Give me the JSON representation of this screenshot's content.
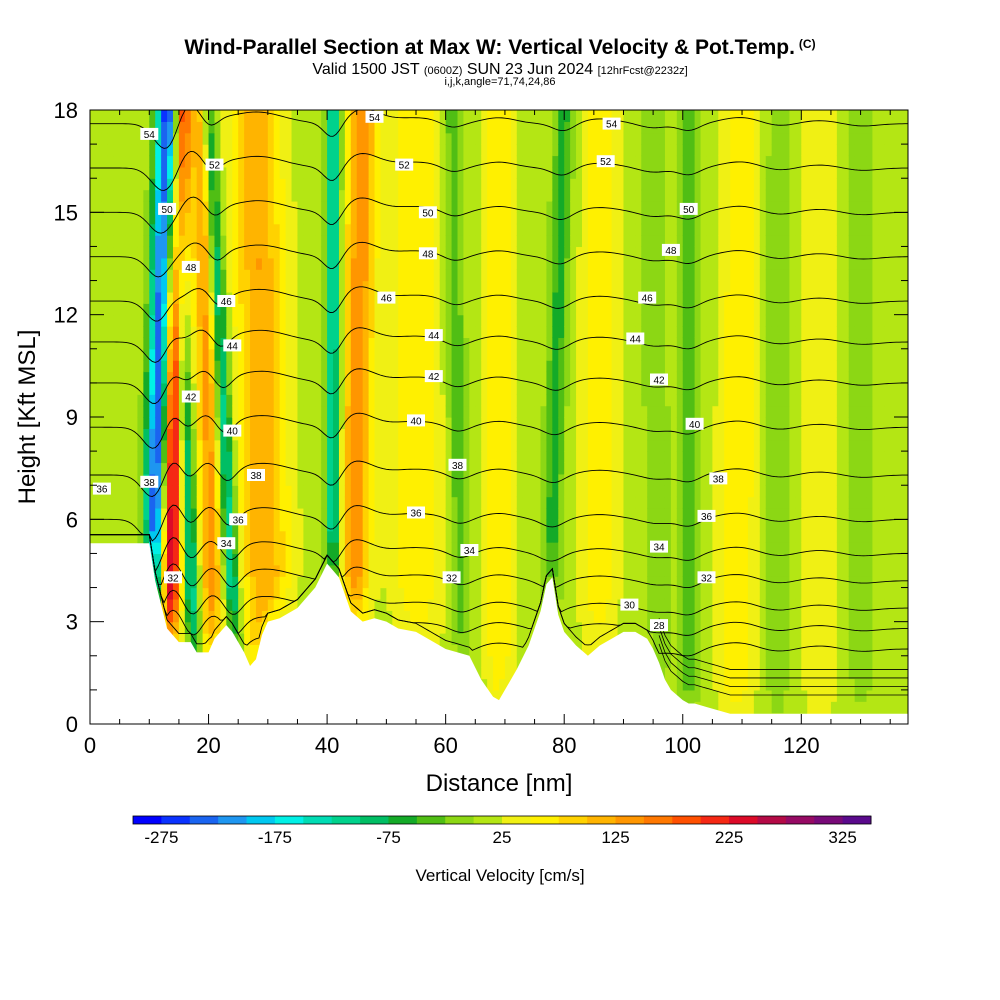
{
  "header": {
    "title": "Wind-Parallel Section at Max W: Vertical Velocity & Pot.Temp.",
    "copyright_mark": "(C)",
    "valid_main": "Valid 1500 JST",
    "valid_utc": "(0600Z)",
    "valid_date": "SUN 23 Jun 2024",
    "forecast_tag": "[12hrFcst@2232z]",
    "indices": "i,j,k,angle=71,74,24,86"
  },
  "chart_data": {
    "type": "heatmap",
    "title": "Wind-Parallel Section at Max W: Vertical Velocity & Pot.Temp.",
    "xlabel": "Distance [nm]",
    "ylabel": "Height [Kft MSL]",
    "xlim": [
      0,
      138
    ],
    "ylim": [
      0,
      18
    ],
    "x_ticks": [
      0,
      20,
      40,
      60,
      80,
      100,
      120
    ],
    "y_ticks": [
      0,
      3,
      6,
      9,
      12,
      15,
      18
    ],
    "colorbar": {
      "label": "Vertical Velocity [cm/s]",
      "tick_values": [
        -275,
        -175,
        -75,
        25,
        125,
        225,
        325
      ],
      "range": [
        -300,
        350
      ],
      "colors": [
        "#0000ff",
        "#0a32ff",
        "#1a64f0",
        "#1e96f0",
        "#00c8f0",
        "#00f0e6",
        "#00dcb4",
        "#00d28c",
        "#00be64",
        "#14aa28",
        "#50be14",
        "#8cd714",
        "#b4e614",
        "#f0f014",
        "#fff000",
        "#ffd200",
        "#ffb400",
        "#ff9600",
        "#ff7800",
        "#ff5000",
        "#f52814",
        "#dc0a28",
        "#b40a46",
        "#960a64",
        "#780a78",
        "#5a0a8c"
      ]
    },
    "terrain_profile": [
      [
        0,
        5.3
      ],
      [
        3,
        5.3
      ],
      [
        6,
        5.3
      ],
      [
        10,
        5.3
      ],
      [
        11,
        4.2
      ],
      [
        12,
        3.5
      ],
      [
        13,
        2.8
      ],
      [
        15,
        2.4
      ],
      [
        17,
        2.4
      ],
      [
        18,
        2.1
      ],
      [
        20,
        2.1
      ],
      [
        21,
        2.5
      ],
      [
        22,
        2.7
      ],
      [
        23,
        2.9
      ],
      [
        24,
        2.7
      ],
      [
        25,
        2.4
      ],
      [
        26,
        2.1
      ],
      [
        27,
        1.7
      ],
      [
        28,
        1.9
      ],
      [
        29,
        2.6
      ],
      [
        30,
        3.0
      ],
      [
        32,
        3.1
      ],
      [
        35,
        3.4
      ],
      [
        38,
        4.0
      ],
      [
        40,
        4.7
      ],
      [
        42,
        4.3
      ],
      [
        44,
        3.3
      ],
      [
        46,
        3.0
      ],
      [
        48,
        3.1
      ],
      [
        50,
        3.0
      ],
      [
        52,
        2.8
      ],
      [
        55,
        2.7
      ],
      [
        58,
        2.4
      ],
      [
        60,
        2.2
      ],
      [
        62,
        2.1
      ],
      [
        64,
        2.0
      ],
      [
        66,
        1.3
      ],
      [
        68,
        0.8
      ],
      [
        69,
        0.7
      ],
      [
        70,
        1.0
      ],
      [
        72,
        1.6
      ],
      [
        74,
        2.3
      ],
      [
        76,
        3.3
      ],
      [
        77,
        4.1
      ],
      [
        78,
        4.3
      ],
      [
        79,
        3.2
      ],
      [
        80,
        2.7
      ],
      [
        82,
        2.3
      ],
      [
        84,
        2.0
      ],
      [
        86,
        2.3
      ],
      [
        88,
        2.5
      ],
      [
        90,
        2.7
      ],
      [
        92,
        2.7
      ],
      [
        94,
        2.5
      ],
      [
        95,
        2.2
      ],
      [
        96,
        1.8
      ],
      [
        97,
        1.3
      ],
      [
        98,
        1.0
      ],
      [
        100,
        0.7
      ],
      [
        101,
        0.6
      ],
      [
        102,
        0.6
      ],
      [
        104,
        0.5
      ],
      [
        106,
        0.4
      ],
      [
        108,
        0.3
      ],
      [
        112,
        0.3
      ],
      [
        116,
        0.3
      ],
      [
        120,
        0.3
      ],
      [
        128,
        0.3
      ],
      [
        138,
        0.3
      ]
    ],
    "velocity_field": {
      "background": 15,
      "features": [
        {
          "x_bottom": 10,
          "x_top": 13,
          "amplitude": -290,
          "half_width": 1.8
        },
        {
          "x_bottom": 13,
          "x_top": 15,
          "amplitude": 260,
          "half_width": 1.8
        },
        {
          "x_bottom": 18,
          "x_top": 14,
          "amplitude": -140,
          "half_width": 1.3
        },
        {
          "x_bottom": 21,
          "x_top": 19,
          "amplitude": 120,
          "half_width": 2.0
        },
        {
          "x_bottom": 25,
          "x_top": 20,
          "amplitude": -150,
          "half_width": 1.3
        },
        {
          "x_bottom": 30,
          "x_top": 28,
          "amplitude": 110,
          "half_width": 4.0
        },
        {
          "x_bottom": 41,
          "x_top": 41,
          "amplitude": -150,
          "half_width": 1.3
        },
        {
          "x_bottom": 44,
          "x_top": 46,
          "amplitude": 130,
          "half_width": 2.5
        },
        {
          "x_bottom": 55,
          "x_top": 55,
          "amplitude": 55,
          "half_width": 4.0
        },
        {
          "x_bottom": 63,
          "x_top": 61,
          "amplitude": -55,
          "half_width": 1.6
        },
        {
          "x_bottom": 69,
          "x_top": 69,
          "amplitude": 55,
          "half_width": 2.5
        },
        {
          "x_bottom": 77,
          "x_top": 80,
          "amplitude": -75,
          "half_width": 1.6
        },
        {
          "x_bottom": 86,
          "x_top": 86,
          "amplitude": 45,
          "half_width": 3.0
        },
        {
          "x_bottom": 96,
          "x_top": 95,
          "amplitude": -40,
          "half_width": 2.0
        },
        {
          "x_bottom": 101,
          "x_top": 101,
          "amplitude": -65,
          "half_width": 1.6
        },
        {
          "x_bottom": 109,
          "x_top": 110,
          "amplitude": 60,
          "half_width": 3.0
        },
        {
          "x_bottom": 116,
          "x_top": 116,
          "amplitude": -30,
          "half_width": 2.5
        },
        {
          "x_bottom": 123,
          "x_top": 123,
          "amplitude": 30,
          "half_width": 3.0
        },
        {
          "x_bottom": 130,
          "x_top": 130,
          "amplitude": -25,
          "half_width": 2.5
        }
      ]
    },
    "isotherm_levels": [
      26,
      28,
      30,
      32,
      34,
      36,
      38,
      40,
      42,
      44,
      46,
      48,
      50,
      52,
      54
    ],
    "isotherm_base_heights": {
      "26": 2.2,
      "28": 2.8,
      "30": 3.4,
      "32": 4.2,
      "34": 5.0,
      "36": 6.0,
      "38": 7.3,
      "40": 8.7,
      "42": 10.0,
      "44": 11.2,
      "46": 12.4,
      "48": 13.7,
      "50": 15.0,
      "52": 16.3,
      "54": 17.6
    },
    "isotherm_labels": [
      {
        "level": "54",
        "positions": [
          [
            10,
            17.3
          ],
          [
            48,
            17.8
          ],
          [
            88,
            17.6
          ]
        ]
      },
      {
        "level": "52",
        "positions": [
          [
            21,
            16.4
          ],
          [
            53,
            16.4
          ],
          [
            87,
            16.5
          ]
        ]
      },
      {
        "level": "50",
        "positions": [
          [
            13,
            15.1
          ],
          [
            57,
            15.0
          ],
          [
            101,
            15.1
          ]
        ]
      },
      {
        "level": "48",
        "positions": [
          [
            17,
            13.4
          ],
          [
            57,
            13.8
          ],
          [
            98,
            13.9
          ]
        ]
      },
      {
        "level": "46",
        "positions": [
          [
            23,
            12.4
          ],
          [
            50,
            12.5
          ],
          [
            94,
            12.5
          ]
        ]
      },
      {
        "level": "44",
        "positions": [
          [
            24,
            11.1
          ],
          [
            58,
            11.4
          ],
          [
            92,
            11.3
          ]
        ]
      },
      {
        "level": "42",
        "positions": [
          [
            17,
            9.6
          ],
          [
            58,
            10.2
          ],
          [
            96,
            10.1
          ]
        ]
      },
      {
        "level": "40",
        "positions": [
          [
            24,
            8.6
          ],
          [
            55,
            8.9
          ],
          [
            102,
            8.8
          ]
        ]
      },
      {
        "level": "38",
        "positions": [
          [
            10,
            7.1
          ],
          [
            28,
            7.3
          ],
          [
            62,
            7.6
          ],
          [
            106,
            7.2
          ]
        ]
      },
      {
        "level": "36",
        "positions": [
          [
            2,
            6.9
          ],
          [
            25,
            6.0
          ],
          [
            55,
            6.2
          ],
          [
            104,
            6.1
          ]
        ]
      },
      {
        "level": "34",
        "positions": [
          [
            23,
            5.3
          ],
          [
            64,
            5.1
          ],
          [
            96,
            5.2
          ]
        ]
      },
      {
        "level": "32",
        "positions": [
          [
            14,
            4.3
          ],
          [
            61,
            4.3
          ],
          [
            104,
            4.3
          ]
        ]
      },
      {
        "level": "30",
        "positions": [
          [
            91,
            3.5
          ]
        ]
      },
      {
        "level": "28",
        "positions": [
          [
            96,
            2.9
          ]
        ]
      }
    ]
  }
}
